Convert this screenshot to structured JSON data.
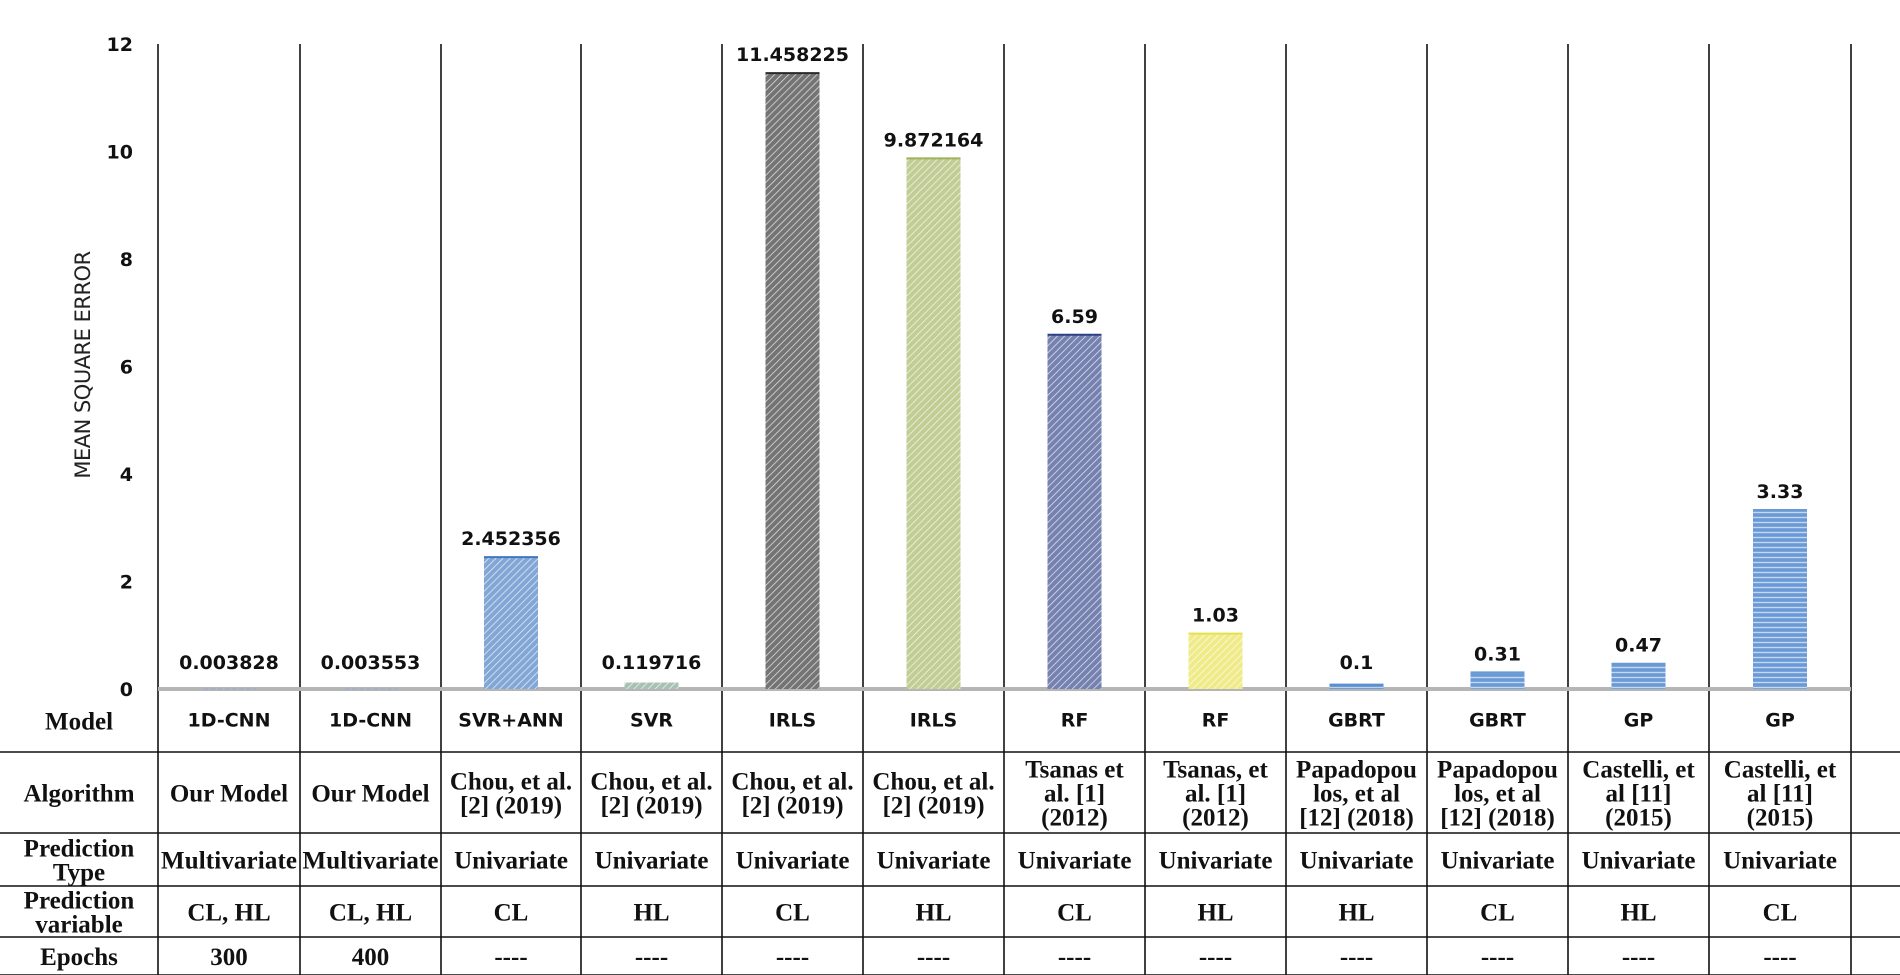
{
  "chart_data": {
    "type": "bar",
    "title": "",
    "xlabel": "",
    "ylabel": "MEAN SQUARE ERROR",
    "ylim": [
      0,
      12
    ],
    "yticks": [
      0,
      2,
      4,
      6,
      8,
      10,
      12
    ],
    "grid": false,
    "legend": "none",
    "value_labels": [
      "0.003828",
      "0.003553",
      "2.452356",
      "0.119716",
      "11.458225",
      "9.872164",
      "6.59",
      "1.03",
      "0.1",
      "0.31",
      "0.47",
      "3.33"
    ],
    "values": [
      0.003828,
      0.003553,
      2.452356,
      0.119716,
      11.458225,
      9.872164,
      6.59,
      1.03,
      0.1,
      0.31,
      0.47,
      3.33
    ],
    "bar_colors": [
      "#4a7fc1",
      "#4a7fc1",
      "#3f78c0",
      "#7aa08a",
      "#2a2a2a",
      "#9fb25a",
      "#2b3f86",
      "#e6e04a",
      "#5a8fd0",
      "#6a9ad6",
      "#6a9ad6",
      "#6a9ad6"
    ],
    "bar_patterns": [
      "hatch",
      "hatch",
      "hatch",
      "hatch",
      "hatch",
      "hatch",
      "hatch",
      "hatch",
      "hlines",
      "hlines",
      "hlines",
      "hlines"
    ]
  },
  "table": {
    "row_headers": {
      "model": "Model",
      "algorithm": "Algorithm",
      "prediction_type": [
        "Prediction",
        "Type"
      ],
      "prediction_variable": [
        "Prediction",
        "variable"
      ],
      "epochs": "Epochs"
    },
    "columns": [
      {
        "model": "1D-CNN",
        "algorithm": [
          "Our Model"
        ],
        "prediction_type": "Multivariate",
        "prediction_variable": "CL, HL",
        "epochs": "300"
      },
      {
        "model": "1D-CNN",
        "algorithm": [
          "Our Model"
        ],
        "prediction_type": "Multivariate",
        "prediction_variable": "CL, HL",
        "epochs": "400"
      },
      {
        "model": "SVR+ANN",
        "algorithm": [
          "Chou, et al.",
          "[2] (2019)"
        ],
        "prediction_type": "Univariate",
        "prediction_variable": "CL",
        "epochs": "----"
      },
      {
        "model": "SVR",
        "algorithm": [
          "Chou, et al.",
          "[2] (2019)"
        ],
        "prediction_type": "Univariate",
        "prediction_variable": "HL",
        "epochs": "----"
      },
      {
        "model": "IRLS",
        "algorithm": [
          "Chou, et al.",
          "[2] (2019)"
        ],
        "prediction_type": "Univariate",
        "prediction_variable": "CL",
        "epochs": "----"
      },
      {
        "model": "IRLS",
        "algorithm": [
          "Chou, et al.",
          "[2] (2019)"
        ],
        "prediction_type": "Univariate",
        "prediction_variable": "HL",
        "epochs": "----"
      },
      {
        "model": "RF",
        "algorithm": [
          "Tsanas et",
          "al. [1]",
          "(2012)"
        ],
        "prediction_type": "Univariate",
        "prediction_variable": "CL",
        "epochs": "----"
      },
      {
        "model": "RF",
        "algorithm": [
          "Tsanas, et",
          "al. [1]",
          "(2012)"
        ],
        "prediction_type": "Univariate",
        "prediction_variable": "HL",
        "epochs": "----"
      },
      {
        "model": "GBRT",
        "algorithm": [
          "Papadopou",
          "los, et al",
          "[12] (2018)"
        ],
        "prediction_type": "Univariate",
        "prediction_variable": "HL",
        "epochs": "----"
      },
      {
        "model": "GBRT",
        "algorithm": [
          "Papadopou",
          "los, et al",
          "[12] (2018)"
        ],
        "prediction_type": "Univariate",
        "prediction_variable": "CL",
        "epochs": "----"
      },
      {
        "model": "GP",
        "algorithm": [
          "Castelli, et",
          "al [11]",
          "(2015)"
        ],
        "prediction_type": "Univariate",
        "prediction_variable": "HL",
        "epochs": "----"
      },
      {
        "model": "GP",
        "algorithm": [
          "Castelli, et",
          "al [11]",
          "(2015)"
        ],
        "prediction_type": "Univariate",
        "prediction_variable": "CL",
        "epochs": "----"
      }
    ]
  }
}
